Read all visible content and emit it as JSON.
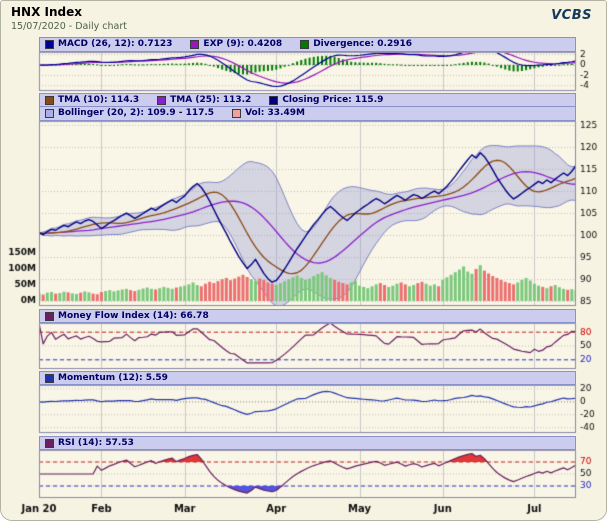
{
  "header": {
    "title": "HNX Index",
    "subtitle": "15/07/2020 - Daily chart",
    "brand": "VCBS"
  },
  "legends": {
    "macd": [
      {
        "label": "MACD (26, 12): 0.7123",
        "color": "#000099"
      },
      {
        "label": "EXP (9): 0.4208",
        "color": "#9916bb"
      },
      {
        "label": "Divergence: 0.2916",
        "color": "#007a00"
      }
    ],
    "price_row1": [
      {
        "label": "TMA (10): 114.3",
        "color": "#8a4a12"
      },
      {
        "label": "TMA (25): 113.2",
        "color": "#8a22cc"
      },
      {
        "label": "Closing Price: 115.9",
        "color": "#000080"
      }
    ],
    "price_row2": [
      {
        "label": "Bollinger (20, 2): 109.9 - 117.5",
        "color": "#a9aee6"
      },
      {
        "label": "Vol: 33.49M",
        "color": "#f0a0a0"
      }
    ],
    "mfi": [
      {
        "label": "Money Flow Index (14): 66.78",
        "color": "#6b2060"
      }
    ],
    "momentum": [
      {
        "label": "Momentum (12): 5.59",
        "color": "#2233aa"
      }
    ],
    "rsi": [
      {
        "label": "RSI (14): 57.53",
        "color": "#6b2060"
      }
    ]
  },
  "chart_data": {
    "type": "line",
    "title": "HNX Index - 15/07/2020 - Daily chart",
    "x_labels": [
      "Jan 20",
      "Feb",
      "Mar",
      "Apr",
      "May",
      "Jun",
      "Jul"
    ],
    "month_start_indices": [
      0,
      15,
      35,
      57,
      77,
      97,
      119
    ],
    "close": [
      100.6,
      100.2,
      100.9,
      101.4,
      101.2,
      101.8,
      102.3,
      102.0,
      102.6,
      103.1,
      102.7,
      103.3,
      103.6,
      103.2,
      102.4,
      101.6,
      102.2,
      102.9,
      103.4,
      104.0,
      104.6,
      105.1,
      104.5,
      103.9,
      104.4,
      105.0,
      105.6,
      106.2,
      105.7,
      106.4,
      107.0,
      107.6,
      108.1,
      107.5,
      108.3,
      109.0,
      110.2,
      111.1,
      111.8,
      110.9,
      109.5,
      107.8,
      105.9,
      104.0,
      102.2,
      100.5,
      98.6,
      96.9,
      95.2,
      93.8,
      92.5,
      93.4,
      94.6,
      93.0,
      91.4,
      90.2,
      89.4,
      89.8,
      91.0,
      92.4,
      93.9,
      95.5,
      97.0,
      98.4,
      99.8,
      101.2,
      102.5,
      103.6,
      104.8,
      105.9,
      106.6,
      105.8,
      104.9,
      104.1,
      103.4,
      104.2,
      105.1,
      105.8,
      106.5,
      107.1,
      107.8,
      108.4,
      107.9,
      107.2,
      107.8,
      108.5,
      109.1,
      108.6,
      108.0,
      108.7,
      109.3,
      109.0,
      108.4,
      109.0,
      109.6,
      110.1,
      109.5,
      110.3,
      111.2,
      112.3,
      113.5,
      114.8,
      116.0,
      117.2,
      118.3,
      117.6,
      118.8,
      117.9,
      116.5,
      114.9,
      113.2,
      111.8,
      110.4,
      109.2,
      108.3,
      108.9,
      109.6,
      110.3,
      110.9,
      111.6,
      112.3,
      111.8,
      112.6,
      112.0,
      112.8,
      113.5,
      114.2,
      113.6,
      114.6,
      115.9
    ],
    "volume_m": [
      24,
      20,
      26,
      28,
      23,
      25,
      29,
      27,
      24,
      22,
      26,
      30,
      27,
      23,
      21,
      28,
      31,
      34,
      30,
      33,
      36,
      38,
      34,
      31,
      35,
      39,
      42,
      38,
      36,
      40,
      44,
      41,
      38,
      42,
      45,
      48,
      52,
      58,
      50,
      46,
      54,
      60,
      56,
      62,
      68,
      72,
      65,
      70,
      76,
      82,
      75,
      68,
      63,
      70,
      66,
      58,
      54,
      50,
      56,
      62,
      68,
      74,
      80,
      72,
      66,
      70,
      78,
      84,
      90,
      80,
      72,
      66,
      60,
      56,
      52,
      58,
      64,
      48,
      44,
      40,
      46,
      52,
      56,
      50,
      44,
      48,
      54,
      58,
      52,
      46,
      50,
      56,
      60,
      54,
      48,
      52,
      46,
      66,
      74,
      82,
      90,
      98,
      108,
      92,
      85,
      100,
      112,
      95,
      86,
      78,
      72,
      66,
      60,
      56,
      52,
      58,
      66,
      72,
      64,
      54,
      48,
      44,
      40,
      46,
      50,
      43,
      38,
      35,
      37,
      33.49
    ],
    "panels": {
      "macd": {
        "ylim": [
          -5.0,
          2.5
        ],
        "yticks": [
          {
            "v": 2,
            "label": "2"
          },
          {
            "v": 0,
            "label": "0"
          },
          {
            "v": -2,
            "label": "-2"
          },
          {
            "v": -4,
            "label": "-4"
          }
        ],
        "ref_lines": [
          {
            "v": 0,
            "color": "#999999",
            "dash": [
              1,
              2
            ]
          }
        ]
      },
      "price": {
        "ylim": [
          84,
          126
        ],
        "yticks": [
          {
            "v": 125,
            "label": "125"
          },
          {
            "v": 120,
            "label": "120"
          },
          {
            "v": 115,
            "label": "115"
          },
          {
            "v": 110,
            "label": "110"
          },
          {
            "v": 105,
            "label": "105"
          },
          {
            "v": 100,
            "label": "100"
          },
          {
            "v": 95,
            "label": "95"
          },
          {
            "v": 90,
            "label": "90"
          },
          {
            "v": 85,
            "label": "85"
          }
        ],
        "volume_axis": [
          {
            "v": 150,
            "label": "150M"
          },
          {
            "v": 100,
            "label": "100M"
          },
          {
            "v": 50,
            "label": "50M"
          },
          {
            "v": 0,
            "label": "0M"
          }
        ]
      },
      "mfi": {
        "ylim": [
          0,
          100
        ],
        "yticks": [
          {
            "v": 80,
            "label": "80",
            "color": "#cc0000"
          },
          {
            "v": 50,
            "label": "50"
          },
          {
            "v": 20,
            "label": "20",
            "color": "#2222cc"
          }
        ],
        "ref_lines": [
          {
            "v": 80,
            "color": "#cc2222",
            "dash": [
              4,
              3
            ]
          },
          {
            "v": 20,
            "color": "#3333cc",
            "dash": [
              4,
              3
            ]
          }
        ]
      },
      "momentum": {
        "ylim": [
          -48,
          26
        ],
        "yticks": [
          {
            "v": 20,
            "label": "20"
          },
          {
            "v": 0,
            "label": "0"
          },
          {
            "v": -20,
            "label": "-20"
          },
          {
            "v": -40,
            "label": "-40"
          }
        ],
        "ref_lines": [
          {
            "v": 0,
            "color": "#999999",
            "dash": [
              1,
              2
            ]
          }
        ]
      },
      "rsi": {
        "ylim": [
          10,
          90
        ],
        "yticks": [
          {
            "v": 70,
            "label": "70",
            "color": "#cc0000"
          },
          {
            "v": 50,
            "label": "50"
          },
          {
            "v": 30,
            "label": "30",
            "color": "#2222cc"
          }
        ],
        "ref_lines": [
          {
            "v": 70,
            "color": "#cc2222",
            "dash": [
              4,
              3
            ]
          },
          {
            "v": 30,
            "color": "#3333cc",
            "dash": [
              4,
              3
            ]
          }
        ],
        "fill_above": 70,
        "fill_below": 30
      }
    },
    "indicator_settings": {
      "macd_fast": 12,
      "macd_slow": 26,
      "macd_signal": 9,
      "tma_fast": 10,
      "tma_slow": 25,
      "bollinger_period": 20,
      "bollinger_mult": 2,
      "mfi_period": 14,
      "momentum_period": 12,
      "rsi_period": 14
    },
    "indicators_last": {
      "macd": 0.7123,
      "exp9": 0.4208,
      "divergence": 0.2916,
      "tma10": 114.3,
      "tma25": 113.2,
      "close": 115.9,
      "bollinger": "109.9 - 117.5",
      "vol": "33.49M",
      "mfi": 66.78,
      "momentum": 5.59,
      "rsi": 57.53
    }
  },
  "colors": {
    "background": "#f6f3e2",
    "plot_bg": "#f9f6e7",
    "panel_header_bg": "#ccccee",
    "panel_border": "#8888aa",
    "grid": "#c9c9c9",
    "dotted_grid": "#c2c2b6",
    "close_line": "#000080",
    "tma10": "#8a4a12",
    "tma25": "#8a22cc",
    "bollinger_fill": "rgba(145,150,215,0.35)",
    "bollinger_edge": "rgba(110,115,195,0.85)",
    "vol_up": "#7cc87c",
    "vol_down": "#ec7070",
    "macd_line": "#000099",
    "exp_line": "#9916bb",
    "divergence": "#007a00",
    "mfi_line": "#6b2060",
    "momentum_line": "#2233aa",
    "rsi_line": "#6b2060",
    "rsi_fill_above": "rgba(222,34,34,0.9)",
    "rsi_fill_below": "rgba(66,66,220,0.9)",
    "tick_text": "#111111",
    "month_text": "#111111"
  }
}
